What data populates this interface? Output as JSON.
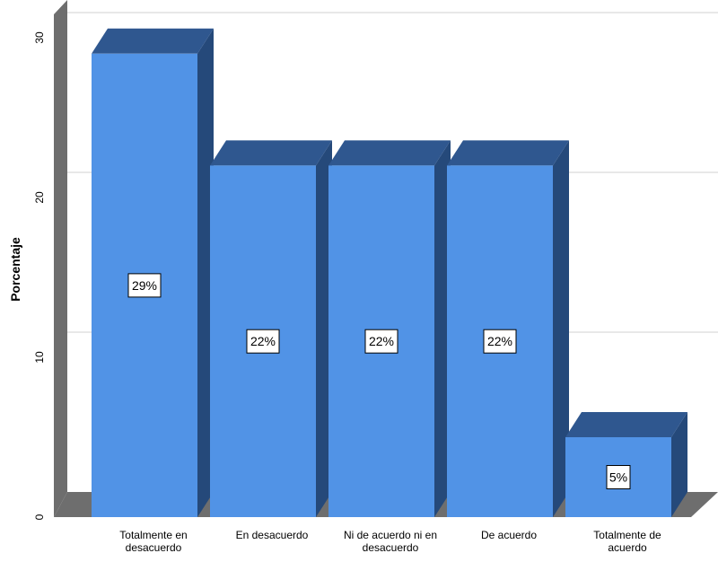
{
  "chart_data": {
    "type": "bar",
    "style": "3d",
    "ylabel": "Porcentaje",
    "ylim": [
      0,
      30
    ],
    "yticks": [
      "0",
      "10",
      "20",
      "30"
    ],
    "grid": true,
    "categories": [
      [
        "Totalmente en",
        "desacuerdo"
      ],
      [
        "En desacuerdo"
      ],
      [
        "Ni de acuerdo ni en",
        "desacuerdo"
      ],
      [
        "De acuerdo"
      ],
      [
        "Totalmente de",
        "acuerdo"
      ]
    ],
    "values": [
      29,
      22,
      22,
      22,
      5
    ],
    "data_labels": [
      "29%",
      "22%",
      "22%",
      "22%",
      "5%"
    ],
    "colors": {
      "bar_front": "#5193e6",
      "bar_top": "#2f578f",
      "bar_side": "#25497a",
      "floor": "#6e6e6e",
      "wall": "#6e6e6e",
      "gridline": "#d0d0d0"
    }
  }
}
